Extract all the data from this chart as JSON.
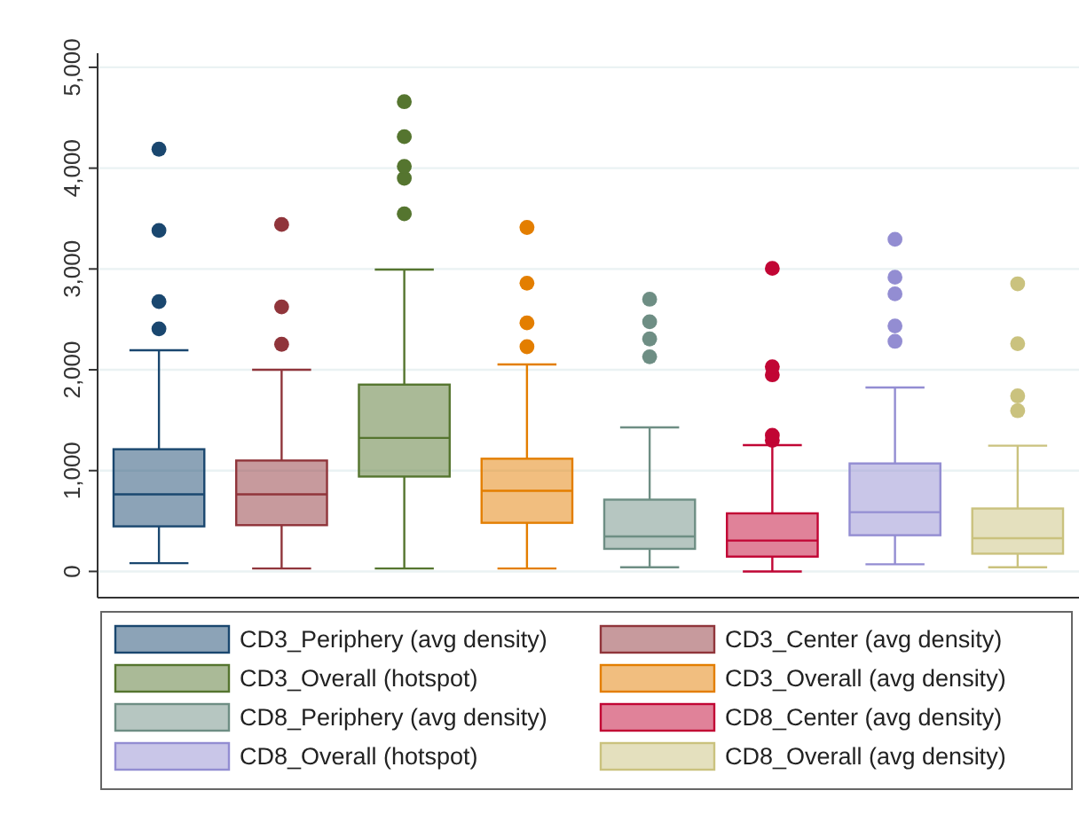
{
  "chart_data": {
    "type": "box",
    "categories": [
      null
    ],
    "ylim": [
      -260,
      5140
    ],
    "yticks": [
      0,
      {
        "value": 1000,
        "label": "1,000"
      },
      {
        "value": 2000,
        "label": "2,000"
      },
      {
        "value": 3000,
        "label": "3,000"
      },
      {
        "value": 4000,
        "label": "4,000"
      },
      {
        "value": 5000,
        "label": "5,000"
      }
    ],
    "grid": "y",
    "legend": "bottom",
    "series": [
      {
        "name": "CD3_Periphery (avg density)",
        "color": "#1a476f",
        "boxes": [
          {
            "low": 82,
            "q1": 447,
            "median": 765,
            "q3": 1212,
            "high": 2194,
            "outliers": [
              2406,
              2676,
              3382,
              4188
            ]
          }
        ]
      },
      {
        "name": "CD3_Center (avg density)",
        "color": "#90353b",
        "boxes": [
          {
            "low": 29,
            "q1": 459,
            "median": 765,
            "q3": 1100,
            "high": 2000,
            "outliers": [
              2253,
              2624,
              3441
            ]
          }
        ]
      },
      {
        "name": "CD3_Overall (hotspot)",
        "color": "#55752f",
        "boxes": [
          {
            "low": 29,
            "q1": 941,
            "median": 1324,
            "q3": 1853,
            "high": 2994,
            "outliers": [
              3547,
              3900,
              4018,
              4312,
              4659
            ]
          }
        ]
      },
      {
        "name": "CD3_Overall (avg density)",
        "color": "#e37e00",
        "boxes": [
          {
            "low": 29,
            "q1": 482,
            "median": 800,
            "q3": 1118,
            "high": 2053,
            "outliers": [
              2229,
              2465,
              2859,
              3412
            ]
          }
        ]
      },
      {
        "name": "CD8_Periphery (avg density)",
        "color": "#6e8e84",
        "boxes": [
          {
            "low": 41,
            "q1": 224,
            "median": 347,
            "q3": 712,
            "high": 1429,
            "outliers": [
              2129,
              2306,
              2476,
              2700
            ]
          }
        ]
      },
      {
        "name": "CD8_Center (avg density)",
        "color": "#c10534",
        "boxes": [
          {
            "low": 0,
            "q1": 147,
            "median": 306,
            "q3": 576,
            "high": 1253,
            "outliers": [
              1300,
              1350,
              1950,
              2030,
              3006
            ]
          }
        ]
      },
      {
        "name": "CD8_Overall (hotspot)",
        "color": "#938dd2",
        "boxes": [
          {
            "low": 71,
            "q1": 359,
            "median": 588,
            "q3": 1071,
            "high": 1824,
            "outliers": [
              2282,
              2435,
              2753,
              2918,
              3294
            ]
          }
        ]
      },
      {
        "name": "CD8_Overall (avg density)",
        "color": "#cac27e",
        "boxes": [
          {
            "low": 41,
            "q1": 176,
            "median": 329,
            "q3": 624,
            "high": 1247,
            "outliers": [
              1594,
              1741,
              2259,
              2853
            ]
          }
        ]
      }
    ]
  }
}
